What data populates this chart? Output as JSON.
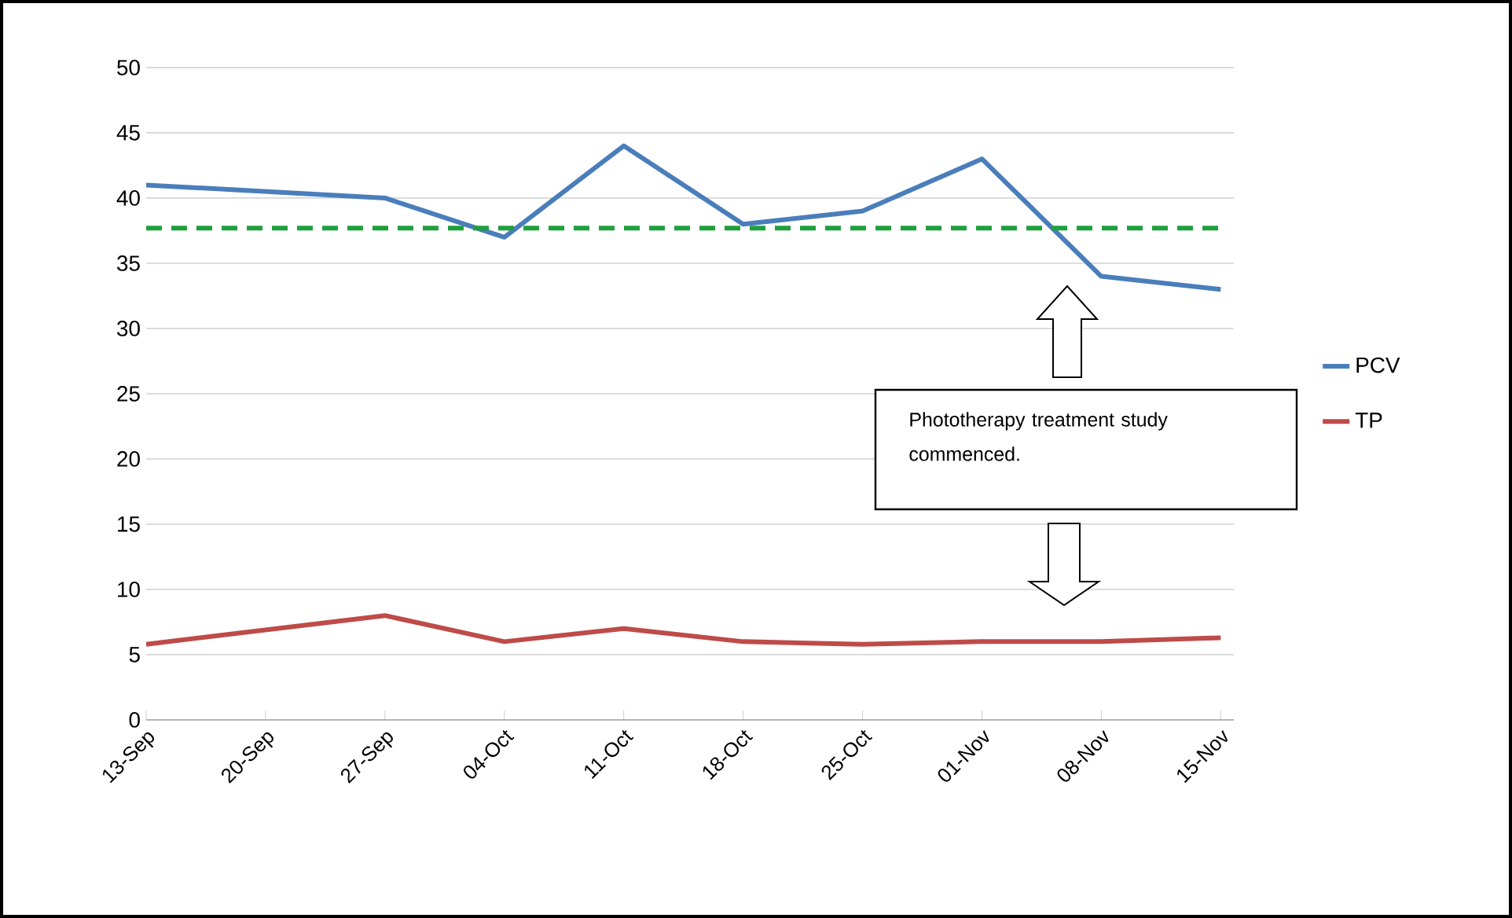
{
  "chart_data": {
    "type": "line",
    "categories": [
      "13-Sep",
      "20-Sep",
      "27-Sep",
      "04-Oct",
      "11-Oct",
      "18-Oct",
      "25-Oct",
      "01-Nov",
      "08-Nov",
      "15-Nov"
    ],
    "series": [
      {
        "name": "PCV",
        "color": "#4a7ebb",
        "values": [
          41,
          40.5,
          40,
          37,
          44,
          38,
          39,
          43,
          34,
          33
        ]
      },
      {
        "name": "TP",
        "color": "#be4b48",
        "values": [
          5.8,
          6.9,
          8,
          6,
          7,
          6,
          5.8,
          6,
          6,
          6.3
        ]
      }
    ],
    "ylim": [
      0,
      50
    ],
    "yticks": [
      0,
      5,
      10,
      15,
      20,
      25,
      30,
      35,
      40,
      45,
      50
    ],
    "grid": "y",
    "legend": "right",
    "marker": "none",
    "line_style": "solid",
    "ref_lines": [
      {
        "axis": "y",
        "value": 37.7,
        "color": "#1ea03c",
        "line_style": "dashed"
      }
    ],
    "annotations": [
      "Phototherapy treatment study commenced."
    ]
  }
}
